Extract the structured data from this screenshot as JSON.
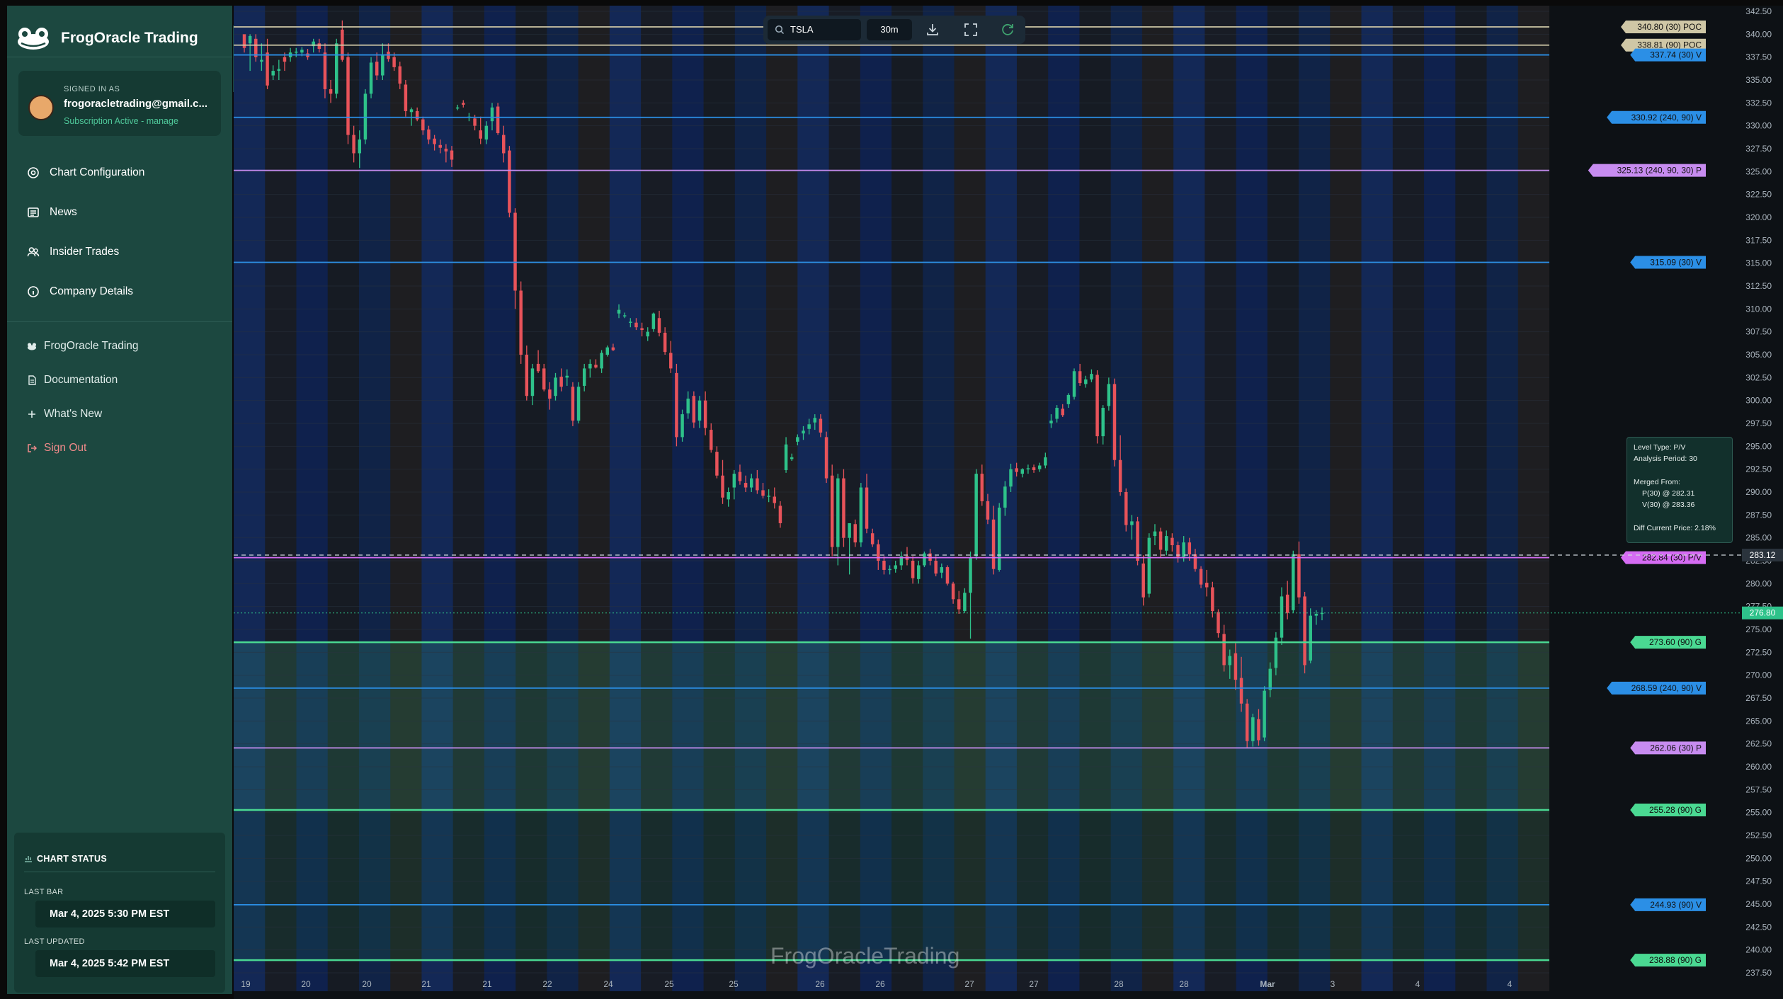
{
  "app": {
    "brand_title": "FrogOracle Trading",
    "user": {
      "label": "SIGNED IN AS",
      "email": "frogoracletrading@gmail.c...",
      "subscription": "Subscription Active - manage"
    },
    "nav_items": [
      "Chart Configuration",
      "News",
      "Insider Trades",
      "Company Details"
    ],
    "secondary_items": [
      "FrogOracle Trading",
      "Documentation",
      "What's New",
      "Sign Out"
    ],
    "chart_status": {
      "title": "CHART STATUS",
      "last_bar_label": "LAST BAR",
      "last_bar_value": "Mar 4, 2025 5:30 PM EST",
      "last_updated_label": "LAST UPDATED",
      "last_updated_value": "Mar 4, 2025 5:42 PM EST"
    }
  },
  "toolbar": {
    "symbol": "TSLA",
    "interval": "30m"
  },
  "watermark": "FrogOracleTrading",
  "tooltip": {
    "lines": [
      "Level Type: P/V",
      "Analysis Period: 30",
      "Merged From:",
      "P(30) @ 282.31",
      "V(30) @ 283.36",
      "Diff Current Price: 2.18%"
    ]
  },
  "colors": {
    "sidebar": "#1c4840",
    "up_candle": "#2ec28a",
    "down_candle": "#e8535a",
    "poc": "#cfc7a6",
    "v_level": "#2b8fe6",
    "p_level": "#c78cf0",
    "g_level": "#4ad992",
    "pv_level": "#d56cf3"
  },
  "chart_data": {
    "type": "candlestick",
    "symbol": "TSLA",
    "interval": "30m",
    "y_axis": {
      "min": 237.5,
      "max": 342.5,
      "ticks": [
        "342.50",
        "340.00",
        "337.50",
        "335.00",
        "332.50",
        "330.00",
        "327.50",
        "325.00",
        "322.50",
        "320.00",
        "317.50",
        "315.00",
        "312.50",
        "310.00",
        "307.50",
        "305.00",
        "302.50",
        "300.00",
        "297.50",
        "295.00",
        "292.50",
        "290.00",
        "287.50",
        "285.00",
        "282.50",
        "280.00",
        "277.50",
        "275.00",
        "272.50",
        "270.00",
        "267.50",
        "265.00",
        "262.50",
        "260.00",
        "257.50",
        "255.00",
        "252.50",
        "250.00",
        "247.50",
        "245.00",
        "242.50",
        "240.00",
        "237.50"
      ]
    },
    "x_axis": {
      "ticks": [
        "19",
        "20",
        "20",
        "21",
        "21",
        "22",
        "24",
        "25",
        "25",
        "26",
        "26",
        "27",
        "27",
        "28",
        "28",
        "Mar",
        "3",
        "4",
        "4"
      ]
    },
    "levels": [
      {
        "price": 340.8,
        "label": "340.80 (30) POC",
        "kind": "poc"
      },
      {
        "price": 338.81,
        "label": "338.81 (90) POC",
        "kind": "poc"
      },
      {
        "price": 337.74,
        "label": "337.74 (30) V",
        "kind": "v"
      },
      {
        "price": 330.92,
        "label": "330.92 (240, 90) V",
        "kind": "v"
      },
      {
        "price": 325.13,
        "label": "325.13 (240, 90, 30) P",
        "kind": "p"
      },
      {
        "price": 315.09,
        "label": "315.09 (30) V",
        "kind": "v"
      },
      {
        "price": 282.84,
        "label": "282.84 (30) P/V",
        "kind": "pv"
      },
      {
        "price": 273.6,
        "label": "273.60 (90) G",
        "kind": "g"
      },
      {
        "price": 268.59,
        "label": "268.59 (240, 90) V",
        "kind": "v"
      },
      {
        "price": 262.06,
        "label": "262.06 (30) P",
        "kind": "p"
      },
      {
        "price": 255.28,
        "label": "255.28 (90) G",
        "kind": "g"
      },
      {
        "price": 244.93,
        "label": "244.93 (90) V",
        "kind": "v"
      },
      {
        "price": 238.88,
        "label": "238.88 (90) G",
        "kind": "g"
      }
    ],
    "markers": [
      {
        "price": 283.12,
        "label": "283.12",
        "kind": "dashed"
      },
      {
        "price": 276.8,
        "label": "276.80",
        "kind": "current"
      }
    ],
    "candles": [
      [
        340,
        339.5,
        338,
        338.5
      ],
      [
        339,
        340,
        336,
        339.8
      ],
      [
        339.5,
        340,
        337,
        337.5
      ],
      [
        337,
        339,
        336,
        337.2
      ],
      [
        338,
        339.5,
        334,
        334.4
      ],
      [
        335.5,
        336.6,
        335,
        336
      ],
      [
        336,
        337.2,
        335,
        336.2
      ],
      [
        337.5,
        338,
        336,
        337
      ],
      [
        337.5,
        338.5,
        337,
        338
      ],
      [
        338,
        338.5,
        337.5,
        338.1
      ],
      [
        338,
        338.6,
        337.6,
        338.3
      ],
      [
        337.9,
        338.4,
        337.2,
        337.5
      ],
      [
        338.7,
        339.5,
        338,
        339.2
      ],
      [
        339,
        339.5,
        338,
        338.4
      ],
      [
        338,
        339,
        333,
        334
      ],
      [
        334,
        335,
        332.5,
        333.5
      ],
      [
        333.5,
        339.5,
        333,
        339
      ],
      [
        340.5,
        341.5,
        337,
        337.2
      ],
      [
        337.5,
        338,
        328,
        329
      ],
      [
        329,
        330,
        326,
        327
      ],
      [
        327,
        329.5,
        325.4,
        328.5
      ],
      [
        328.5,
        334,
        328,
        333.5
      ],
      [
        333.5,
        337.5,
        333,
        336.9
      ],
      [
        337,
        338,
        335,
        335.5
      ],
      [
        335.5,
        339,
        335,
        337.8
      ],
      [
        338.1,
        339,
        337,
        337.3
      ],
      [
        337.5,
        338,
        336,
        336.4
      ],
      [
        336.5,
        337,
        334,
        334.6
      ],
      [
        334.5,
        335,
        331,
        331.6
      ],
      [
        331.5,
        332,
        330,
        331.8
      ],
      [
        331.6,
        332,
        330.5,
        330.7
      ],
      [
        330.7,
        331,
        329,
        329.5
      ],
      [
        329.6,
        330,
        328,
        328.5
      ],
      [
        328.6,
        329,
        327.3,
        328
      ],
      [
        327.9,
        328.5,
        327,
        327.6
      ],
      [
        327.5,
        328,
        326,
        327.2
      ],
      [
        327.3,
        327.8,
        325.5,
        326.3
      ],
      [
        332,
        332.3,
        331.7,
        332
      ],
      [
        332.5,
        332.8,
        332,
        332.3
      ],
      [
        331,
        331.4,
        330.5,
        331
      ],
      [
        330.8,
        331.2,
        329.5,
        330
      ],
      [
        329.5,
        331,
        328,
        328.6
      ],
      [
        328.5,
        330.5,
        328,
        330
      ],
      [
        330.5,
        332.5,
        329.5,
        332
      ],
      [
        332.1,
        332.5,
        329,
        329.2
      ],
      [
        329,
        330,
        326,
        327
      ],
      [
        327.3,
        327.8,
        320,
        320.5
      ],
      [
        320.5,
        321,
        310,
        312
      ],
      [
        312,
        313,
        304,
        305
      ],
      [
        305,
        306,
        300,
        300.5
      ],
      [
        300.5,
        304,
        299.5,
        303.5
      ],
      [
        304,
        305.5,
        303,
        303.2
      ],
      [
        303.5,
        304,
        301,
        301.2
      ],
      [
        301.2,
        302,
        299,
        300.2
      ],
      [
        300.5,
        303,
        300,
        302.5
      ],
      [
        302.6,
        303.5,
        301,
        301.5
      ],
      [
        302.5,
        303.4,
        301.6,
        302.7
      ],
      [
        301.5,
        302,
        297.2,
        297.8
      ],
      [
        297.8,
        302,
        297.5,
        301.5
      ],
      [
        301.6,
        304,
        301,
        303.5
      ],
      [
        303.5,
        304.5,
        302.5,
        304
      ],
      [
        303.9,
        304.5,
        303.5,
        303.6
      ],
      [
        303.5,
        305.5,
        303,
        305.2
      ],
      [
        305,
        306,
        304.8,
        305.8
      ],
      [
        305.8,
        306.2,
        305.4,
        305.5
      ],
      [
        309.5,
        310.5,
        309,
        309.9
      ],
      [
        309.3,
        309.6,
        309,
        309.3
      ],
      [
        308.6,
        309,
        308,
        308.6
      ],
      [
        308.5,
        309,
        307.7,
        308
      ],
      [
        307.9,
        308.5,
        307,
        307.7
      ],
      [
        307,
        308,
        306.5,
        307.5
      ],
      [
        307.8,
        309.6,
        307.5,
        309.5
      ],
      [
        309,
        309.8,
        307,
        307.4
      ],
      [
        307.4,
        308,
        305,
        305.3
      ],
      [
        305.2,
        306.5,
        303,
        303.5
      ],
      [
        303,
        304,
        295,
        296
      ],
      [
        296,
        299,
        295.5,
        298.5
      ],
      [
        298.6,
        301,
        298,
        300.2
      ],
      [
        300.5,
        301,
        297,
        297.6
      ],
      [
        297.8,
        300.5,
        297,
        300
      ],
      [
        300,
        301,
        296.2,
        297
      ],
      [
        296.8,
        297.5,
        294.3,
        294.6
      ],
      [
        294.4,
        295,
        291.5,
        291.8
      ],
      [
        291.8,
        293.5,
        288.7,
        289.4
      ],
      [
        289.2,
        290.5,
        288.4,
        290
      ],
      [
        290.5,
        292.4,
        289.2,
        292
      ],
      [
        292.2,
        293,
        290.8,
        291.2
      ],
      [
        291,
        291.8,
        290,
        290.5
      ],
      [
        290.5,
        292,
        290,
        291.5
      ],
      [
        291.5,
        292.4,
        289.8,
        290.2
      ],
      [
        290.2,
        291,
        289.3,
        289.6
      ],
      [
        289.5,
        290.3,
        288.9,
        289.6
      ],
      [
        289.5,
        290.5,
        288.2,
        288.8
      ],
      [
        288.5,
        289,
        286.1,
        286.6
      ],
      [
        292.4,
        296,
        292.1,
        295.2
      ],
      [
        293.6,
        294.2,
        293.4,
        293.8
      ],
      [
        295.5,
        296.3,
        295.1,
        296
      ],
      [
        296.4,
        297.2,
        295.7,
        296.7
      ],
      [
        296.9,
        298,
        296.3,
        297.4
      ],
      [
        297.6,
        298.5,
        296.8,
        298.1
      ],
      [
        298,
        298.5,
        296,
        296.5
      ],
      [
        296,
        296.6,
        291,
        291.5
      ],
      [
        291.8,
        293,
        283,
        284
      ],
      [
        284,
        292,
        282,
        291.5
      ],
      [
        291.5,
        292.5,
        284,
        285
      ],
      [
        285,
        286,
        281,
        286.6
      ],
      [
        286.5,
        287,
        284,
        284.5
      ],
      [
        284.5,
        291,
        284,
        290.5
      ],
      [
        290.5,
        292,
        285.5,
        286
      ],
      [
        285.5,
        286,
        284,
        284.3
      ],
      [
        284.3,
        284.8,
        281.5,
        282.5
      ],
      [
        282.5,
        283,
        281,
        281.5
      ],
      [
        281.5,
        282,
        281,
        281.6
      ],
      [
        281.6,
        282.5,
        281.2,
        282
      ],
      [
        282,
        283.5,
        281.5,
        283
      ],
      [
        283,
        284,
        282,
        282.6
      ],
      [
        282.5,
        283,
        280,
        280.6
      ],
      [
        280.5,
        282.5,
        280,
        282
      ],
      [
        282,
        283.5,
        281.8,
        283.3
      ],
      [
        283.3,
        283.8,
        282,
        282.5
      ],
      [
        282.5,
        283,
        280.8,
        281.1
      ],
      [
        281.2,
        282.2,
        280.6,
        281.8
      ],
      [
        281.8,
        282,
        279.8,
        280
      ],
      [
        280,
        280.2,
        277.8,
        278.3
      ],
      [
        278.3,
        279.2,
        276.7,
        277.2
      ],
      [
        277,
        279.5,
        276.8,
        279
      ],
      [
        279,
        283.5,
        274,
        282.8
      ],
      [
        283,
        292.5,
        282.6,
        292
      ],
      [
        292,
        293,
        288.5,
        289
      ],
      [
        289,
        289.8,
        286.5,
        287
      ],
      [
        287,
        288.5,
        281,
        281.6
      ],
      [
        281.5,
        288.8,
        281.3,
        288.3
      ],
      [
        288.3,
        291.2,
        287.4,
        290.6
      ],
      [
        290.6,
        293.1,
        290,
        292.5
      ],
      [
        292.6,
        293.2,
        291.7,
        292.2
      ],
      [
        292,
        292.6,
        291.6,
        292.5
      ],
      [
        292.5,
        293,
        292,
        292.6
      ],
      [
        292.7,
        293,
        292.1,
        292.4
      ],
      [
        292.5,
        293.2,
        292.2,
        292.9
      ],
      [
        292.9,
        294.3,
        292.6,
        293.8
      ],
      [
        297.5,
        298.5,
        297,
        297.8
      ],
      [
        298,
        299.5,
        297.6,
        299.2
      ],
      [
        299.1,
        299.6,
        298.2,
        298.4
      ],
      [
        299.6,
        300.8,
        299.2,
        300.6
      ],
      [
        300.4,
        303.5,
        300.1,
        303.2
      ],
      [
        303.2,
        304,
        301.6,
        301.9
      ],
      [
        301.8,
        302.7,
        301.4,
        302.3
      ],
      [
        302.3,
        303.4,
        302,
        302.9
      ],
      [
        302.8,
        303.3,
        295.3,
        296.1
      ],
      [
        296.1,
        299.5,
        295.2,
        299.2
      ],
      [
        299.4,
        302.5,
        298.9,
        301.8
      ],
      [
        301.8,
        302.4,
        292.8,
        293.5
      ],
      [
        293.5,
        296.2,
        289.6,
        290
      ],
      [
        290,
        290.4,
        285.7,
        286.4
      ],
      [
        286.4,
        287.5,
        284.8,
        286.8
      ],
      [
        286.8,
        287.3,
        282,
        282.5
      ],
      [
        282.2,
        283.1,
        277.6,
        278.5
      ],
      [
        278.9,
        285.5,
        278.5,
        285
      ],
      [
        285.2,
        286.5,
        284.2,
        285.7
      ],
      [
        285.7,
        286.1,
        282.8,
        283.7
      ],
      [
        283.6,
        285.8,
        283.1,
        285.2
      ],
      [
        285,
        285.5,
        283.5,
        284.2
      ],
      [
        284.2,
        284.6,
        282.3,
        282.8
      ],
      [
        282.9,
        285.2,
        282.4,
        284.5
      ],
      [
        284.5,
        285,
        282.5,
        283.2
      ],
      [
        283.2,
        283.8,
        281.3,
        281.6
      ],
      [
        281.6,
        281.9,
        279.5,
        279.9
      ],
      [
        280.1,
        281.5,
        278.6,
        279.6
      ],
      [
        279.6,
        280.2,
        276.3,
        277
      ],
      [
        276.9,
        277.2,
        274.1,
        274.6
      ],
      [
        274.5,
        275.5,
        270.4,
        271.1
      ],
      [
        271.1,
        272.8,
        269.6,
        272.1
      ],
      [
        272.4,
        273.5,
        268.4,
        269.5
      ],
      [
        269.7,
        272,
        266,
        266.9
      ],
      [
        266.9,
        267.4,
        262.1,
        262.8
      ],
      [
        262.8,
        265.8,
        262.2,
        265.4
      ],
      [
        265.2,
        266.3,
        262.3,
        262.9
      ],
      [
        263.2,
        268.8,
        262.8,
        268.3
      ],
      [
        268.4,
        271.4,
        267.6,
        270.7
      ],
      [
        270.8,
        274.7,
        270,
        274.1
      ],
      [
        274.1,
        279.6,
        273.3,
        278.6
      ],
      [
        278.8,
        280.3,
        276.1,
        276.8
      ],
      [
        277.1,
        283.6,
        276.8,
        283.2
      ],
      [
        283.2,
        284.6,
        277.8,
        278.5
      ],
      [
        278.6,
        279.1,
        270.2,
        271.1
      ],
      [
        271.6,
        277.3,
        271.3,
        276.5
      ],
      [
        276.5,
        277.1,
        275.5,
        276.7
      ],
      [
        276.7,
        277.4,
        276,
        276.8
      ]
    ],
    "grid": true,
    "legend": "none"
  }
}
